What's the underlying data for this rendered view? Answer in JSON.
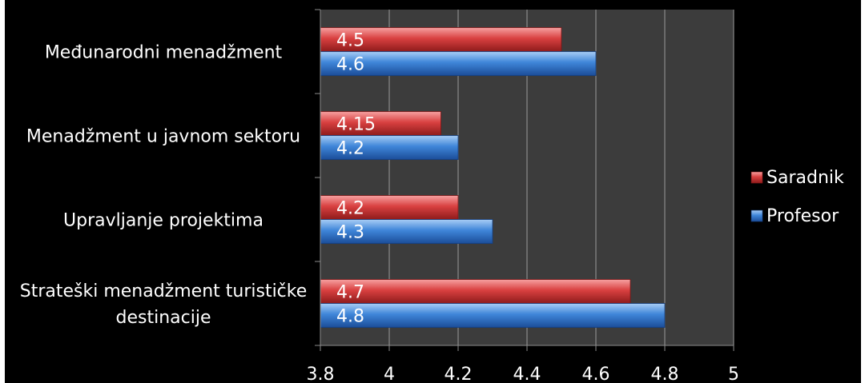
{
  "chart_data": {
    "type": "bar",
    "orientation": "horizontal",
    "categories": [
      "Međunarodni menadžment",
      "Menadžment u javnom sektoru",
      "Upravljanje projektima",
      "Strateški menadžment turističke destinacije"
    ],
    "category_lines": [
      [
        "Međunarodni menadžment"
      ],
      [
        "Menadžment u javnom sektoru"
      ],
      [
        "Upravljanje projektima"
      ],
      [
        "Strateški menadžment turističke",
        "destinacije"
      ]
    ],
    "series": [
      {
        "name": "Saradnik",
        "values": [
          4.5,
          4.15,
          4.2,
          4.7
        ],
        "labels": [
          "4.5",
          "4.15",
          "4.2",
          "4.7"
        ],
        "color": "#c0392b"
      },
      {
        "name": "Profesor",
        "values": [
          4.6,
          4.2,
          4.3,
          4.8
        ],
        "labels": [
          "4.6",
          "4.2",
          "4.3",
          "4.8"
        ],
        "color": "#2e6fc9"
      }
    ],
    "x_ticks": [
      "3.8",
      "4",
      "4.2",
      "4.4",
      "4.6",
      "4.8",
      "5"
    ],
    "xlim": [
      3.8,
      5
    ],
    "grid": true,
    "legend_position": "right",
    "title": "",
    "xlabel": "",
    "ylabel": ""
  }
}
